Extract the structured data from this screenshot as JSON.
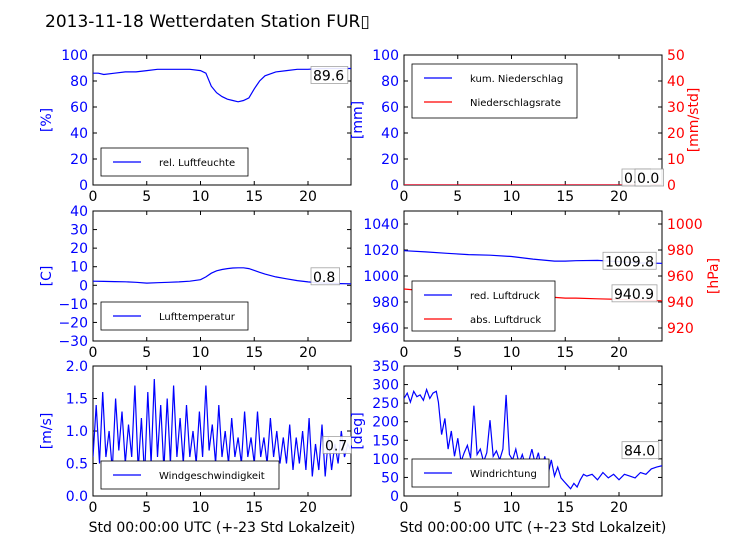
{
  "title": "2013-11-18 Wetterdaten Station FUR▯",
  "chart_data": [
    {
      "id": "humidity",
      "type": "line",
      "ylabel": "[%]",
      "xlim": [
        0,
        24
      ],
      "ylim": [
        0,
        100
      ],
      "xticks": [
        "0",
        "5",
        "10",
        "15",
        "20"
      ],
      "yticks": [
        "0",
        "20",
        "40",
        "60",
        "80",
        "100"
      ],
      "series": [
        {
          "name": "rel. Luftfeuchte",
          "color": "#0000ff",
          "x": [
            0,
            0.5,
            1,
            2,
            3,
            4,
            5,
            6,
            7,
            8,
            9,
            10,
            10.5,
            11,
            11.5,
            12,
            12.5,
            13,
            13.5,
            14,
            14.5,
            15,
            15.5,
            16,
            17,
            18,
            19,
            20,
            21,
            22,
            23,
            24
          ],
          "y": [
            86,
            86,
            85,
            86,
            87,
            87,
            88,
            89,
            89,
            89,
            89,
            88,
            86,
            76,
            71,
            68,
            66,
            65,
            64,
            65,
            67,
            74,
            80,
            84,
            87,
            88,
            89,
            89,
            89.5,
            89.6,
            89.6,
            89.6
          ]
        }
      ],
      "last_value": "89.6"
    },
    {
      "id": "precip",
      "type": "line",
      "ylabel": "[mm]",
      "ylabel_right": "[mm/std]",
      "xlim": [
        0,
        24
      ],
      "ylim": [
        0,
        100
      ],
      "ylim_right": [
        0,
        50
      ],
      "xticks": [
        "0",
        "5",
        "10",
        "15",
        "20"
      ],
      "yticks": [
        "0",
        "20",
        "40",
        "60",
        "80",
        "100"
      ],
      "yticks_right": [
        "0",
        "10",
        "20",
        "30",
        "40",
        "50"
      ],
      "series": [
        {
          "name": "kum. Niederschlag",
          "color": "#0000ff",
          "axis": "left",
          "x": [
            0,
            24
          ],
          "y": [
            0,
            0
          ]
        },
        {
          "name": "Niederschlagsrate",
          "color": "#ff0000",
          "axis": "right",
          "x": [
            0,
            24
          ],
          "y": [
            0,
            0
          ]
        }
      ],
      "last_value_left": "0.0",
      "last_value_right": "0.0"
    },
    {
      "id": "temperature",
      "type": "line",
      "ylabel": "[C]",
      "xlim": [
        0,
        24
      ],
      "ylim": [
        -30,
        40
      ],
      "xticks": [
        "0",
        "5",
        "10",
        "15",
        "20"
      ],
      "yticks": [
        "−30",
        "−20",
        "−10",
        "0",
        "10",
        "20",
        "30",
        "40"
      ],
      "series": [
        {
          "name": "Lufttemperatur",
          "color": "#0000ff",
          "x": [
            0,
            1,
            2,
            3,
            4,
            5,
            6,
            7,
            8,
            9,
            10,
            10.5,
            11,
            11.5,
            12,
            12.5,
            13,
            13.5,
            14,
            14.5,
            15,
            15.5,
            16,
            17,
            18,
            19,
            20,
            21,
            22,
            23,
            24
          ],
          "y": [
            2.2,
            2.1,
            2,
            1.9,
            1.6,
            1.2,
            1.4,
            1.6,
            1.8,
            2.2,
            3,
            4.5,
            6.5,
            7.8,
            8.5,
            9,
            9.3,
            9.4,
            9.4,
            9,
            8,
            7,
            6,
            4.5,
            3.5,
            2.5,
            1.8,
            1.3,
            1,
            0.9,
            0.8
          ]
        }
      ],
      "last_value": "0.8"
    },
    {
      "id": "pressure",
      "type": "line",
      "ylabel_right": "[hPa]",
      "xlim": [
        0,
        24
      ],
      "ylim": [
        950,
        1050
      ],
      "ylim_right": [
        910,
        1010
      ],
      "xticks": [
        "0",
        "5",
        "10",
        "15",
        "20"
      ],
      "yticks": [
        "960",
        "980",
        "1000",
        "1020",
        "1040"
      ],
      "yticks_right": [
        "920",
        "940",
        "960",
        "980",
        "1000"
      ],
      "series": [
        {
          "name": "red. Luftdruck",
          "color": "#0000ff",
          "axis": "left",
          "x": [
            0,
            2,
            4,
            6,
            8,
            10,
            12,
            14,
            15,
            16,
            18,
            20,
            22,
            24
          ],
          "y": [
            1019.5,
            1018.5,
            1017.5,
            1016.5,
            1016,
            1015,
            1013,
            1011.5,
            1011.5,
            1011.8,
            1012,
            1011,
            1010,
            1009.8
          ]
        },
        {
          "name": "abs. Luftdruck",
          "color": "#ff0000",
          "axis": "right",
          "x": [
            0,
            2,
            4,
            6,
            8,
            10,
            12,
            14,
            15,
            16,
            18,
            20,
            22,
            24
          ],
          "y": [
            950,
            948.5,
            947.5,
            946.5,
            946,
            945.5,
            944.5,
            943.5,
            943,
            943,
            942.5,
            942,
            941.5,
            940.9
          ]
        }
      ],
      "last_value_left": "1009.8",
      "last_value_right": "940.9"
    },
    {
      "id": "windspeed",
      "type": "line",
      "ylabel": "[m/s]",
      "xlabel": "Std 00:00:00 UTC (+-23 Std Lokalzeit)",
      "xlim": [
        0,
        24
      ],
      "ylim": [
        0,
        2
      ],
      "xticks": [
        "0",
        "5",
        "10",
        "15",
        "20"
      ],
      "yticks": [
        "0.0",
        "0.5",
        "1.0",
        "1.5",
        "2.0"
      ],
      "series": [
        {
          "name": "Windgeschwindigkeit",
          "color": "#0000ff",
          "x": [
            0,
            0.3,
            0.6,
            0.9,
            1.2,
            1.5,
            1.8,
            2.1,
            2.4,
            2.7,
            3,
            3.3,
            3.6,
            3.9,
            4.2,
            4.5,
            4.8,
            5.1,
            5.4,
            5.7,
            6,
            6.3,
            6.6,
            6.9,
            7.2,
            7.5,
            7.8,
            8.1,
            8.4,
            8.7,
            9,
            9.3,
            9.6,
            9.9,
            10.2,
            10.5,
            10.8,
            11.1,
            11.4,
            11.7,
            12,
            12.3,
            12.6,
            12.9,
            13.2,
            13.5,
            13.8,
            14.1,
            14.4,
            14.7,
            15,
            15.3,
            15.6,
            15.9,
            16.2,
            16.5,
            16.8,
            17.1,
            17.4,
            17.7,
            18,
            18.3,
            18.6,
            18.9,
            19.2,
            19.5,
            19.8,
            20.1,
            20.4,
            20.7,
            21,
            21.3,
            21.6,
            21.9,
            22.2,
            22.5,
            22.8,
            23.1,
            23.4,
            23.7,
            24
          ],
          "y": [
            0.6,
            1.4,
            0.5,
            1.6,
            0.6,
            1.0,
            0.4,
            1.5,
            0.7,
            1.3,
            0.5,
            1.1,
            0.6,
            1.7,
            0.4,
            1.2,
            0.3,
            1.6,
            0.5,
            1.8,
            0.6,
            1.4,
            0.4,
            1.5,
            0.5,
            1.7,
            0.6,
            1.2,
            0.5,
            1.4,
            0.6,
            1.0,
            0.5,
            1.3,
            0.6,
            1.7,
            0.7,
            1.1,
            0.5,
            1.4,
            0.6,
            1.0,
            0.5,
            1.2,
            0.6,
            0.9,
            0.5,
            1.3,
            0.6,
            0.9,
            0.5,
            1.3,
            0.6,
            0.9,
            0.5,
            1.2,
            0.6,
            1.0,
            0.5,
            0.9,
            0.5,
            1.1,
            0.4,
            0.9,
            0.5,
            1.0,
            0.4,
            1.2,
            0.3,
            0.8,
            0.4,
            1.1,
            0.3,
            0.9,
            0.4,
            0.8,
            0.5,
            1.0,
            0.6,
            0.8,
            0.7
          ]
        }
      ],
      "last_value": "0.7"
    },
    {
      "id": "winddir",
      "type": "line",
      "ylabel": "[deg]",
      "xlabel": "Std 00:00:00 UTC (+-23 Std Lokalzeit)",
      "xlim": [
        0,
        24
      ],
      "ylim": [
        0,
        360
      ],
      "xticks": [
        "0",
        "5",
        "10",
        "15",
        "20"
      ],
      "yticks": [
        "0",
        "50",
        "100",
        "150",
        "200",
        "250",
        "300",
        "350"
      ],
      "series": [
        {
          "name": "Windrichtung",
          "color": "#0000ff",
          "x": [
            0,
            0.3,
            0.6,
            0.9,
            1.2,
            1.5,
            1.8,
            2.1,
            2.4,
            2.7,
            3,
            3.2,
            3.5,
            3.8,
            4.1,
            4.4,
            4.7,
            5,
            5.3,
            5.6,
            5.9,
            6.2,
            6.5,
            6.8,
            7.1,
            7.4,
            7.7,
            8,
            8.3,
            8.6,
            8.9,
            9.2,
            9.5,
            9.8,
            10.1,
            10.4,
            10.7,
            11,
            11.3,
            11.6,
            11.9,
            12.2,
            12.5,
            12.8,
            13.1,
            13.4,
            13.7,
            14,
            14.3,
            14.6,
            14.9,
            15.2,
            15.5,
            15.8,
            16.1,
            16.4,
            16.7,
            17,
            17.5,
            18,
            18.5,
            19,
            19.5,
            20,
            20.5,
            21,
            21.5,
            22,
            22.5,
            23,
            23.5,
            24
          ],
          "y": [
            270,
            285,
            260,
            290,
            275,
            280,
            265,
            295,
            270,
            285,
            290,
            260,
            170,
            215,
            130,
            180,
            110,
            160,
            95,
            120,
            140,
            105,
            250,
            115,
            130,
            95,
            120,
            210,
            110,
            125,
            100,
            130,
            280,
            115,
            100,
            130,
            90,
            115,
            85,
            95,
            130,
            90,
            120,
            70,
            110,
            60,
            100,
            55,
            80,
            50,
            40,
            30,
            20,
            35,
            25,
            45,
            60,
            55,
            60,
            45,
            65,
            50,
            60,
            45,
            60,
            55,
            50,
            65,
            60,
            75,
            80,
            84
          ]
        }
      ],
      "last_value": "84.0"
    }
  ]
}
